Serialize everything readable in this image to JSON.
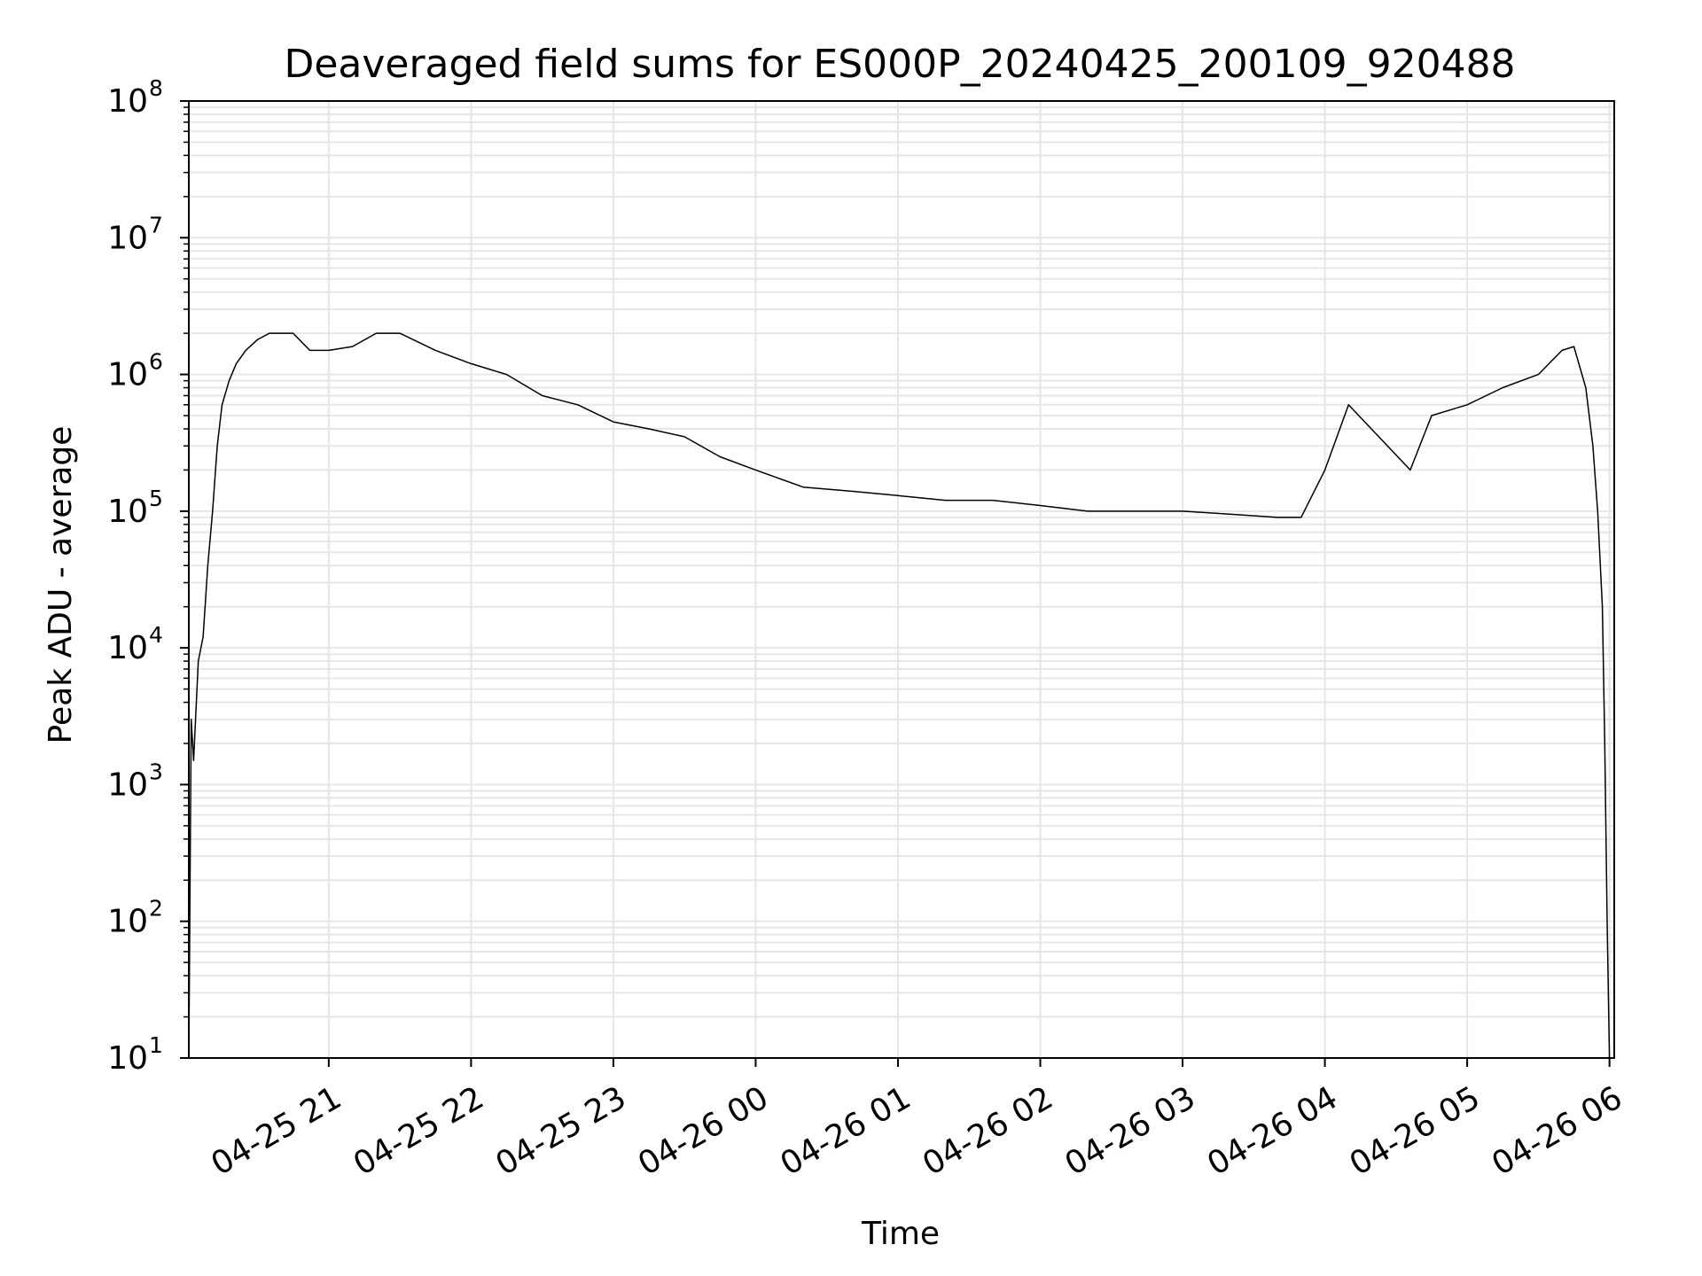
{
  "chart_data": {
    "type": "line",
    "title": "Deaveraged field sums for ES000P_20240425_200109_920488",
    "xlabel": "Time",
    "ylabel": "Peak ADU - average",
    "yscale": "log",
    "ylim": [
      10,
      100000000
    ],
    "xlim": [
      "2024-04-25 20:01",
      "2024-04-26 06:02"
    ],
    "grid": true,
    "line_color": "#000000",
    "x_ticks": [
      {
        "time": "2024-04-25 21:00",
        "label": "04-25 21"
      },
      {
        "time": "2024-04-25 22:00",
        "label": "04-25 22"
      },
      {
        "time": "2024-04-25 23:00",
        "label": "04-25 23"
      },
      {
        "time": "2024-04-26 00:00",
        "label": "04-26 00"
      },
      {
        "time": "2024-04-26 01:00",
        "label": "04-26 01"
      },
      {
        "time": "2024-04-26 02:00",
        "label": "04-26 02"
      },
      {
        "time": "2024-04-26 03:00",
        "label": "04-26 03"
      },
      {
        "time": "2024-04-26 04:00",
        "label": "04-26 04"
      },
      {
        "time": "2024-04-26 05:00",
        "label": "04-26 05"
      },
      {
        "time": "2024-04-26 06:00",
        "label": "04-26 06"
      }
    ],
    "y_ticks": [
      {
        "value": 10,
        "base": "10",
        "exp": "1"
      },
      {
        "value": 100,
        "base": "10",
        "exp": "2"
      },
      {
        "value": 1000,
        "base": "10",
        "exp": "3"
      },
      {
        "value": 10000,
        "base": "10",
        "exp": "4"
      },
      {
        "value": 100000,
        "base": "10",
        "exp": "5"
      },
      {
        "value": 1000000,
        "base": "10",
        "exp": "6"
      },
      {
        "value": 10000000,
        "base": "10",
        "exp": "7"
      },
      {
        "value": 100000000,
        "base": "10",
        "exp": "8"
      }
    ],
    "series": [
      {
        "x": [
          "2024-04-25 20:01",
          "2024-04-25 20:02",
          "2024-04-25 20:03",
          "2024-04-25 20:05",
          "2024-04-25 20:07",
          "2024-04-25 20:09",
          "2024-04-25 20:11",
          "2024-04-25 20:13",
          "2024-04-25 20:15",
          "2024-04-25 20:18",
          "2024-04-25 20:21",
          "2024-04-25 20:25",
          "2024-04-25 20:30",
          "2024-04-25 20:35",
          "2024-04-25 20:45",
          "2024-04-25 20:52",
          "2024-04-25 21:00",
          "2024-04-25 21:10",
          "2024-04-25 21:20",
          "2024-04-25 21:30",
          "2024-04-25 21:45",
          "2024-04-25 22:00",
          "2024-04-25 22:15",
          "2024-04-25 22:30",
          "2024-04-25 22:45",
          "2024-04-25 23:00",
          "2024-04-25 23:15",
          "2024-04-25 23:30",
          "2024-04-25 23:45",
          "2024-04-26 00:00",
          "2024-04-26 00:20",
          "2024-04-26 00:40",
          "2024-04-26 01:00",
          "2024-04-26 01:20",
          "2024-04-26 01:40",
          "2024-04-26 02:00",
          "2024-04-26 02:20",
          "2024-04-26 02:40",
          "2024-04-26 03:00",
          "2024-04-26 03:20",
          "2024-04-26 03:40",
          "2024-04-26 03:50",
          "2024-04-26 04:00",
          "2024-04-26 04:10",
          "2024-04-26 04:36",
          "2024-04-26 04:45",
          "2024-04-26 05:00",
          "2024-04-26 05:15",
          "2024-04-26 05:30",
          "2024-04-26 05:40",
          "2024-04-26 05:45",
          "2024-04-26 05:50",
          "2024-04-26 05:53",
          "2024-04-26 05:55",
          "2024-04-26 05:57",
          "2024-04-26 05:58",
          "2024-04-26 05:59",
          "2024-04-26 06:00"
        ],
        "y": [
          10,
          3000,
          1500,
          8000,
          12000,
          40000,
          100000,
          300000,
          600000,
          900000,
          1200000,
          1500000,
          1800000,
          2000000,
          2000000,
          1500000,
          1500000,
          1600000,
          2000000,
          2000000,
          1500000,
          1200000,
          1000000,
          700000,
          600000,
          450000,
          400000,
          350000,
          250000,
          200000,
          150000,
          140000,
          130000,
          120000,
          120000,
          110000,
          100000,
          100000,
          100000,
          95000,
          90000,
          90000,
          200000,
          600000,
          200000,
          500000,
          600000,
          800000,
          1000000,
          1500000,
          1600000,
          800000,
          300000,
          100000,
          20000,
          2000,
          100,
          10
        ]
      }
    ]
  }
}
